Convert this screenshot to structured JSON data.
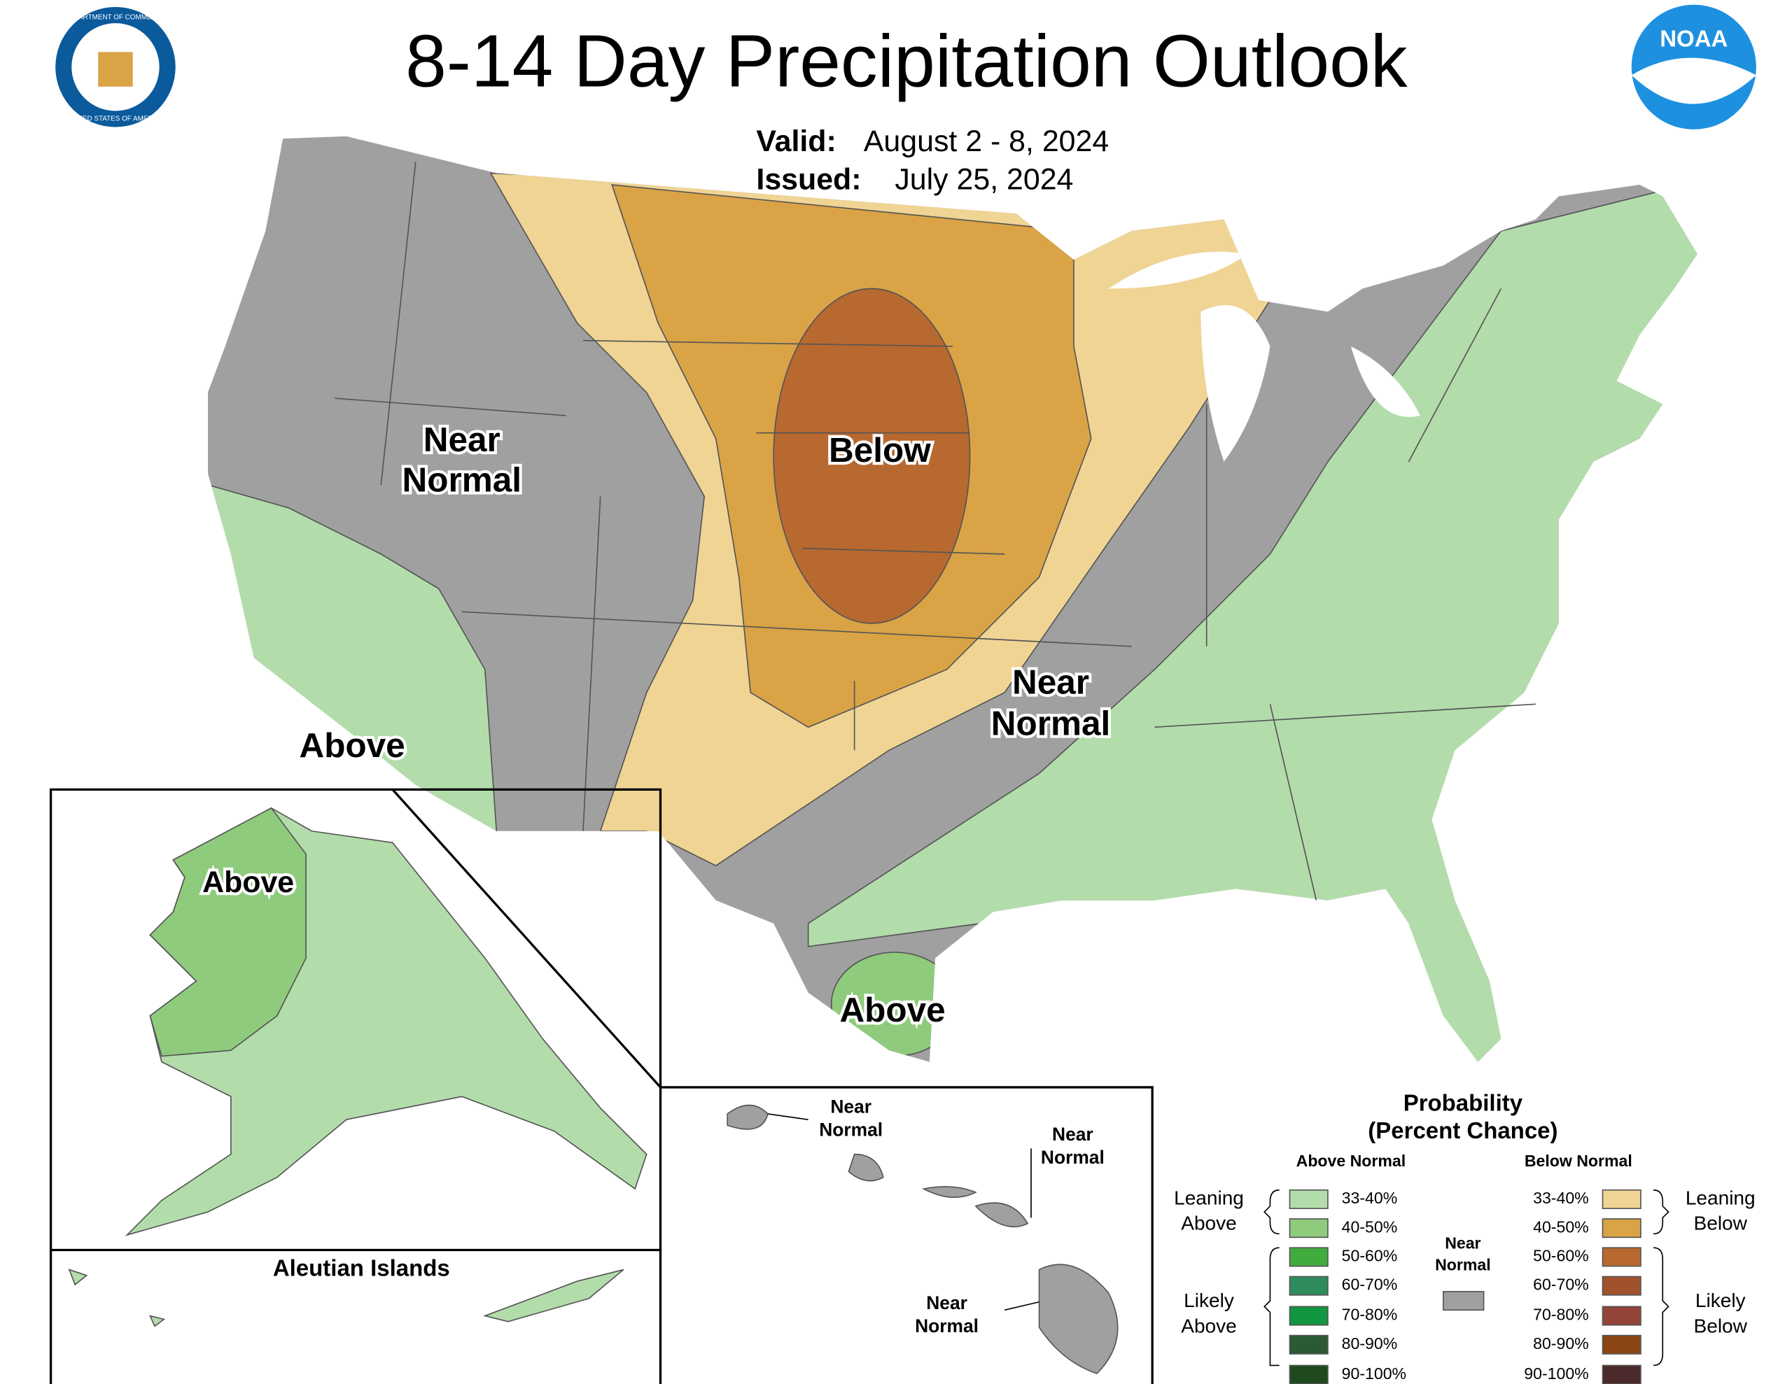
{
  "header": {
    "title": "8-14 Day Precipitation Outlook",
    "valid_label": "Valid:",
    "valid_date": "August 2 - 8, 2024",
    "issued_label": "Issued:",
    "issued_date": "July 25, 2024",
    "seal_top": "DEPARTMENT OF COMMERCE",
    "seal_bottom": "UNITED STATES OF AMERICA",
    "noaa": "NOAA"
  },
  "map": {
    "labels": [
      [
        "Near",
        "Normal"
      ],
      [
        "Below"
      ],
      [
        "Near",
        "Normal"
      ],
      [
        "Above"
      ],
      [
        "Above"
      ]
    ],
    "alaska": {
      "label": "Above",
      "aleutian": "Aleutian Islands"
    },
    "hawaii": {
      "labels": [
        [
          "Near",
          "Normal"
        ],
        [
          "Near",
          "Normal"
        ],
        [
          "Near",
          "Normal"
        ]
      ]
    }
  },
  "legend": {
    "title": [
      "Probability",
      "(Percent Chance)"
    ],
    "above_heading": "Above Normal",
    "below_heading": "Below Normal",
    "above_ranges": [
      "33-40%",
      "40-50%",
      "50-60%",
      "60-70%",
      "70-80%",
      "80-90%",
      "90-100%"
    ],
    "below_ranges": [
      "33-40%",
      "40-50%",
      "50-60%",
      "60-70%",
      "70-80%",
      "80-90%",
      "90-100%"
    ],
    "leaning_above": [
      "Leaning",
      "Above"
    ],
    "likely_above": [
      "Likely",
      "Above"
    ],
    "leaning_below": [
      "Leaning",
      "Below"
    ],
    "likely_below": [
      "Likely",
      "Below"
    ],
    "near_normal": [
      "Near",
      "Normal"
    ]
  }
}
